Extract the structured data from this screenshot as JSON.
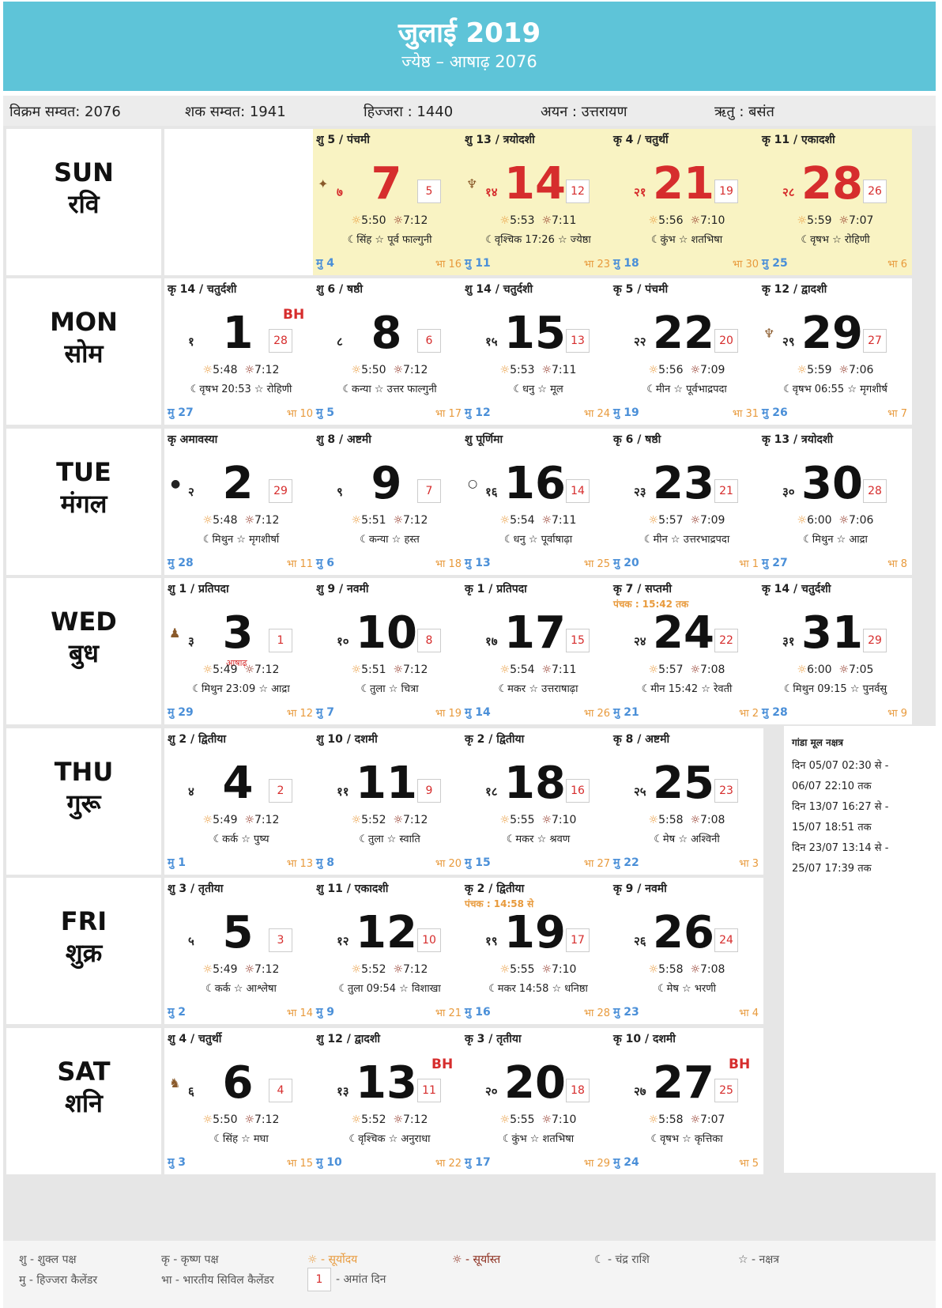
{
  "header": {
    "title": "जुलाई 2019",
    "subtitle": "ज्येष्ठ – आषाढ़  2076"
  },
  "infobar": {
    "vikram": "विक्रम सम्वत: 2076",
    "shaka": "शक सम्वत: 1941",
    "hijra": "हिज्जरा : 1440",
    "ayan": "अयन : उत्तरायण",
    "ritu": "ऋतु : बसंत"
  },
  "days": [
    {
      "en": "SUN",
      "hi": "रवि"
    },
    {
      "en": "MON",
      "hi": "सोम"
    },
    {
      "en": "TUE",
      "hi": "मंगल"
    },
    {
      "en": "WED",
      "hi": "बुध"
    },
    {
      "en": "THU",
      "hi": "गुरू"
    },
    {
      "en": "FRI",
      "hi": "शुक्र"
    },
    {
      "en": "SAT",
      "hi": "शनि"
    }
  ],
  "cells": [
    {
      "row": 0,
      "col": 1,
      "tithi": "शु 5 / पंचमी",
      "date": "7",
      "hdate": "७",
      "amant": "5",
      "rise": "5:50",
      "set": "7:12",
      "raashi": "सिंह ☆ पूर्व फाल्गुनी",
      "mu": "मु 4",
      "bha": "भा 16",
      "sun": true,
      "icon": "✦",
      "icon_name": "festival-icon"
    },
    {
      "row": 0,
      "col": 2,
      "tithi": "शु 13 / त्रयोदशी",
      "date": "14",
      "hdate": "१४",
      "amant": "12",
      "rise": "5:53",
      "set": "7:11",
      "raashi": "वृश्चिक 17:26 ☆ ज्येष्ठा",
      "mu": "मु 11",
      "bha": "भा 23",
      "sun": true,
      "icon": "♆",
      "icon_name": "shiva-icon"
    },
    {
      "row": 0,
      "col": 3,
      "tithi": "कृ 4 / चतुर्थी",
      "date": "21",
      "hdate": "२१",
      "amant": "19",
      "rise": "5:56",
      "set": "7:10",
      "raashi": "कुंभ ☆ शतभिषा",
      "mu": "मु 18",
      "bha": "भा 30",
      "sun": true
    },
    {
      "row": 0,
      "col": 4,
      "tithi": "कृ 11 / एकादशी",
      "date": "28",
      "hdate": "२८",
      "amant": "26",
      "rise": "5:59",
      "set": "7:07",
      "raashi": "वृषभ ☆ रोहिणी",
      "mu": "मु 25",
      "bha": "भा 6",
      "sun": true
    },
    {
      "row": 1,
      "col": 0,
      "tithi": "कृ 14 / चतुर्दशी",
      "date": "1",
      "hdate": "१",
      "amant": "28",
      "bh": "BH",
      "rise": "5:48",
      "set": "7:12",
      "raashi": "वृषभ 20:53 ☆ रोहिणी",
      "mu": "मु 27",
      "bha": "भा 10"
    },
    {
      "row": 1,
      "col": 1,
      "tithi": "शु 6 / षष्ठी",
      "date": "8",
      "hdate": "८",
      "amant": "6",
      "rise": "5:50",
      "set": "7:12",
      "raashi": "कन्या ☆ उत्तर फाल्गुनी",
      "mu": "मु 5",
      "bha": "भा 17"
    },
    {
      "row": 1,
      "col": 2,
      "tithi": "शु 14 / चतुर्दशी",
      "date": "15",
      "hdate": "१५",
      "amant": "13",
      "rise": "5:53",
      "set": "7:11",
      "raashi": "धनु ☆ मूल",
      "mu": "मु 12",
      "bha": "भा 24"
    },
    {
      "row": 1,
      "col": 3,
      "tithi": "कृ 5 / पंचमी",
      "date": "22",
      "hdate": "२२",
      "amant": "20",
      "rise": "5:56",
      "set": "7:09",
      "raashi": "मीन ☆ पूर्वभाद्रपदा",
      "mu": "मु 19",
      "bha": "भा 31"
    },
    {
      "row": 1,
      "col": 4,
      "tithi": "कृ 12 / द्वादशी",
      "date": "29",
      "hdate": "२९",
      "amant": "27",
      "rise": "5:59",
      "set": "7:06",
      "raashi": "वृषभ 06:55 ☆ मृगशीर्ष",
      "mu": "मु 26",
      "bha": "भा 7",
      "icon": "♆",
      "icon_name": "shiva-icon"
    },
    {
      "row": 2,
      "col": 0,
      "tithi": "कृ अमावस्या",
      "date": "2",
      "hdate": "२",
      "amant": "29",
      "rise": "5:48",
      "set": "7:12",
      "raashi": "मिथुन ☆ मृगशीर्षा",
      "mu": "मु 28",
      "bha": "भा 11",
      "moon": "●",
      "moon_name": "new-moon-icon"
    },
    {
      "row": 2,
      "col": 1,
      "tithi": "शु 8 / अष्टमी",
      "date": "9",
      "hdate": "९",
      "amant": "7",
      "rise": "5:51",
      "set": "7:12",
      "raashi": "कन्या ☆ हस्त",
      "mu": "मु 6",
      "bha": "भा 18"
    },
    {
      "row": 2,
      "col": 2,
      "tithi": "शु पूर्णिमा",
      "date": "16",
      "hdate": "१६",
      "amant": "14",
      "rise": "5:54",
      "set": "7:11",
      "raashi": "धनु ☆ पूर्वाषाढ़ा",
      "mu": "मु 13",
      "bha": "भा 25",
      "moon": "○",
      "moon_name": "full-moon-icon"
    },
    {
      "row": 2,
      "col": 3,
      "tithi": "कृ 6 / षष्ठी",
      "date": "23",
      "hdate": "२३",
      "amant": "21",
      "rise": "5:57",
      "set": "7:09",
      "raashi": "मीन ☆ उत्तरभाद्रपदा",
      "mu": "मु 20",
      "bha": "भा 1"
    },
    {
      "row": 2,
      "col": 4,
      "tithi": "कृ 13 / त्रयोदशी",
      "date": "30",
      "hdate": "३०",
      "amant": "28",
      "rise": "6:00",
      "set": "7:06",
      "raashi": "मिथुन ☆ आद्रा",
      "mu": "मु 27",
      "bha": "भा 8"
    },
    {
      "row": 3,
      "col": 0,
      "tithi": "शु 1 / प्रतिपदा",
      "date": "3",
      "hdate": "३",
      "amant": "1",
      "subtext": "आषाढ़",
      "rise": "5:49",
      "set": "7:12",
      "raashi": "मिथुन 23:09 ☆ आद्रा",
      "mu": "मु 29",
      "bha": "भा 12",
      "icon": "♟",
      "icon_name": "deity-icon"
    },
    {
      "row": 3,
      "col": 1,
      "tithi": "शु 9 / नवमी",
      "date": "10",
      "hdate": "१०",
      "amant": "8",
      "rise": "5:51",
      "set": "7:12",
      "raashi": "तुला ☆ चित्रा",
      "mu": "मु 7",
      "bha": "भा 19"
    },
    {
      "row": 3,
      "col": 2,
      "tithi": "कृ 1 / प्रतिपदा",
      "date": "17",
      "hdate": "१७",
      "amant": "15",
      "rise": "5:54",
      "set": "7:11",
      "raashi": "मकर ☆ उत्तराषाढ़ा",
      "mu": "मु 14",
      "bha": "भा 26"
    },
    {
      "row": 3,
      "col": 3,
      "tithi": "कृ 7 / सप्तमी",
      "panchak": "पंचक : 15:42 तक",
      "date": "24",
      "hdate": "२४",
      "amant": "22",
      "rise": "5:57",
      "set": "7:08",
      "raashi": "मीन 15:42 ☆ रेवती",
      "mu": "मु 21",
      "bha": "भा 2"
    },
    {
      "row": 3,
      "col": 4,
      "tithi": "कृ 14 / चतुर्दशी",
      "date": "31",
      "hdate": "३१",
      "amant": "29",
      "rise": "6:00",
      "set": "7:05",
      "raashi": "मिथुन 09:15 ☆ पुनर्वसु",
      "mu": "मु 28",
      "bha": "भा 9"
    },
    {
      "row": 4,
      "col": 0,
      "tithi": "शु 2 / द्वितीया",
      "date": "4",
      "hdate": "४",
      "amant": "2",
      "rise": "5:49",
      "set": "7:12",
      "raashi": "कर्क ☆ पुष्य",
      "mu": "मु 1",
      "bha": "भा 13"
    },
    {
      "row": 4,
      "col": 1,
      "tithi": "शु 10 / दशमी",
      "date": "11",
      "hdate": "११",
      "amant": "9",
      "rise": "5:52",
      "set": "7:12",
      "raashi": "तुला ☆ स्वाति",
      "mu": "मु 8",
      "bha": "भा 20"
    },
    {
      "row": 4,
      "col": 2,
      "tithi": "कृ 2 / द्वितीया",
      "date": "18",
      "hdate": "१८",
      "amant": "16",
      "rise": "5:55",
      "set": "7:10",
      "raashi": "मकर ☆ श्रवण",
      "mu": "मु 15",
      "bha": "भा 27"
    },
    {
      "row": 4,
      "col": 3,
      "tithi": "कृ 8 / अष्टमी",
      "date": "25",
      "hdate": "२५",
      "amant": "23",
      "rise": "5:58",
      "set": "7:08",
      "raashi": "मेष ☆ अश्विनी",
      "mu": "मु 22",
      "bha": "भा 3"
    },
    {
      "row": 5,
      "col": 0,
      "tithi": "शु 3 / तृतीया",
      "date": "5",
      "hdate": "५",
      "amant": "3",
      "rise": "5:49",
      "set": "7:12",
      "raashi": "कर्क ☆ आश्लेषा",
      "mu": "मु 2",
      "bha": "भा 14"
    },
    {
      "row": 5,
      "col": 1,
      "tithi": "शु 11 / एकादशी",
      "date": "12",
      "hdate": "१२",
      "amant": "10",
      "rise": "5:52",
      "set": "7:12",
      "raashi": "तुला 09:54 ☆ विशाखा",
      "mu": "मु 9",
      "bha": "भा 21"
    },
    {
      "row": 5,
      "col": 2,
      "tithi": "कृ 2 / द्वितीया",
      "panchak": "पंचक : 14:58 से",
      "date": "19",
      "hdate": "१९",
      "amant": "17",
      "rise": "5:55",
      "set": "7:10",
      "raashi": "मकर 14:58 ☆ धनिष्ठा",
      "mu": "मु 16",
      "bha": "भा 28"
    },
    {
      "row": 5,
      "col": 3,
      "tithi": "कृ 9 / नवमी",
      "date": "26",
      "hdate": "२६",
      "amant": "24",
      "rise": "5:58",
      "set": "7:08",
      "raashi": "मेष ☆ भरणी",
      "mu": "मु 23",
      "bha": "भा 4"
    },
    {
      "row": 6,
      "col": 0,
      "tithi": "शु 4 / चतुर्थी",
      "date": "6",
      "hdate": "६",
      "amant": "4",
      "rise": "5:50",
      "set": "7:12",
      "raashi": "सिंह ☆ मघा",
      "mu": "मु 3",
      "bha": "भा 15",
      "icon": "♞",
      "icon_name": "deity-icon"
    },
    {
      "row": 6,
      "col": 1,
      "tithi": "शु 12 / द्वादशी",
      "date": "13",
      "hdate": "१३",
      "amant": "11",
      "bh": "BH",
      "rise": "5:52",
      "set": "7:12",
      "raashi": "वृश्चिक ☆ अनुराधा",
      "mu": "मु 10",
      "bha": "भा 22"
    },
    {
      "row": 6,
      "col": 2,
      "tithi": "कृ 3 / तृतीया",
      "date": "20",
      "hdate": "२०",
      "amant": "18",
      "rise": "5:55",
      "set": "7:10",
      "raashi": "कुंभ ☆ शतभिषा",
      "mu": "मु 17",
      "bha": "भा 29"
    },
    {
      "row": 6,
      "col": 3,
      "tithi": "कृ 10 / दशमी",
      "date": "27",
      "hdate": "२७",
      "amant": "25",
      "bh": "BH",
      "rise": "5:58",
      "set": "7:07",
      "raashi": "वृषभ ☆ कृत्तिका",
      "mu": "मु 24",
      "bha": "भा 5"
    }
  ],
  "gandmool": {
    "title": "गांडा मूल नक्षत्र",
    "lines": [
      "दिन 05/07 02:30 से -",
      "06/07 22:10 तक",
      "दिन 13/07 16:27 से -",
      "15/07 18:51 तक",
      "दिन 23/07 13:14 से -",
      "25/07 17:39 तक"
    ]
  },
  "legend": {
    "shukla": "शु - शुक्ल पक्ष",
    "krishna": "कृ - कृष्ण पक्ष",
    "sunrise": "☼ - सूर्योदय",
    "sunset": "☼ - सूर्यास्त",
    "moonsign": "☾ - चंद्र राशि",
    "nakshatra": "☆ - नक्षत्र",
    "hijri": "मु - हिज्जरा कैलेंडर",
    "bharatiya": "भा - भारतीय सिविल कैलेंडर",
    "amant_num": "1",
    "amant": "- अमांत दिन"
  },
  "icons": {
    "sunrise": "☼",
    "sunset": "☼",
    "moon": "☾"
  },
  "colors": {
    "header_bg": "#5ec4d8",
    "sunday_bg": "#f9f3c3",
    "sunday_text": "#d62d2d",
    "hijri": "#4a8fd8",
    "bharatiya": "#e89a3c"
  }
}
